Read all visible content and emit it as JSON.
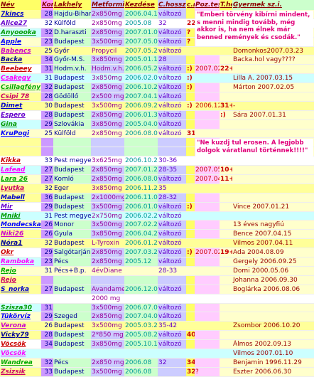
{
  "headers": [
    "Név",
    "Kor",
    "Lakhely",
    "Metformin",
    "Kezdése",
    "C.hossz",
    "c.n",
    "Poz.teszt",
    "T.hét",
    "Gyermek sz.i."
  ],
  "note1": "\"Emberi törvény kibírni mindent, s menni mindig tovább, még akkor is, ha nem élnek már benned remények és csodák.\"",
  "note2": "\"Ne kuzdj tul erosen. A legjobb dolgok váratlanul történnek!!!!\"",
  "rows": [
    [
      "7kincs",
      "28",
      "Hajdu-Bihar",
      "2x850mg",
      "2006.04.10",
      "változó",
      "",
      "",
      "",
      ""
    ],
    [
      "Alice27",
      "32",
      "Külföld",
      "2x850mg",
      "2005.08",
      "32",
      "22",
      "",
      "",
      ""
    ],
    [
      "Anyoooka",
      "32",
      "D.haraszti",
      "2x850mg",
      "2007.01.09",
      "változó",
      "?",
      "",
      "-",
      "Dorka    2004.11.08"
    ],
    [
      "Apple",
      "23",
      "Budapest",
      "3x500mg",
      "2007.05.03",
      "változó",
      "?",
      "",
      "",
      ""
    ],
    [
      "Babencs",
      "25",
      "Győr",
      "Propycil",
      "2007.05.23",
      "változó",
      "",
      "",
      "",
      "Domonkos2007.03.23"
    ],
    [
      "Backa",
      "34",
      "Győr-M.S.",
      "3x850mg",
      "2005.01.18",
      "28",
      "",
      "",
      "",
      "Backa.hol vagy????"
    ],
    [
      "Beebeey",
      "31",
      "Hodm.v.h.",
      "Hodm.v.h.",
      "2006.05.26",
      "változó",
      ":)",
      "2007.02.13",
      "22+1",
      ""
    ],
    [
      "Csakegy",
      "31",
      "Budapest",
      "3x850mg",
      "2006.02.09",
      "változó",
      ":)",
      "",
      "",
      "Lilla A.    2007.03.15"
    ],
    [
      "Csillagfény",
      "32",
      "Budapest",
      "2x850mg",
      "2006.10.24",
      "változó",
      ":)",
      "",
      "",
      "Márton    2007.02.05"
    ],
    [
      "Csipi 78",
      "28",
      "Gödöllő",
      "2x500 mg",
      "2007.04.13",
      "változó",
      "",
      "",
      "",
      ""
    ],
    [
      "Dimet",
      "30",
      "Budapest",
      "3x500mg",
      "2006.09.23",
      "változó",
      ":)",
      "2006.12.04",
      "31+4",
      "-"
    ],
    [
      "Espero",
      "28",
      "Budapest",
      "2x850mg",
      "2006.01.30",
      "változó",
      "",
      "",
      ":)",
      "Sára    2007.01.31"
    ],
    [
      "Gina",
      "29",
      "Szlovákia",
      "3x850mg",
      "2005.04.01",
      "változó",
      "",
      "",
      "",
      ""
    ],
    [
      "KruPogi",
      "25",
      "Külföld",
      "2x850mg",
      "2006.08.04",
      "változó",
      "31",
      "",
      "",
      ""
    ],
    [
      "",
      "",
      "",
      "",
      "",
      "",
      "",
      "",
      "",
      ""
    ],
    [
      "",
      "",
      "",
      "",
      "",
      "",
      "",
      "",
      "",
      ""
    ],
    [
      "Kikka",
      "33",
      "Pest megye",
      "3x625mg",
      "2006.10.28",
      "30-36",
      "",
      "",
      "",
      ""
    ],
    [
      "Lafead",
      "27",
      "Budapest",
      "2x850mg",
      "2007.01.24",
      "28-35",
      "",
      "2007.05.01",
      "10+4",
      ""
    ],
    [
      "Lara 26",
      "27",
      "Komló",
      "2x850mg",
      "2006.08.01",
      "változó",
      "",
      "2007.04.16",
      "11+6",
      ""
    ],
    [
      "Lyutka",
      "32",
      "Eger",
      "3x850mg",
      "2006.11.28",
      "35",
      "",
      "",
      "",
      ""
    ],
    [
      "Mabell",
      "36",
      "Budapest",
      "2x1000mg",
      "2006.11.07",
      "28-32",
      "",
      "",
      "",
      ""
    ],
    [
      "Mir",
      "29",
      "Budapest",
      "3x500mg",
      "2006.01.05",
      "változó",
      ":)",
      "",
      "",
      "Vince    2007.01.21"
    ],
    [
      "Mniki",
      "31",
      "Pest megye",
      "2x750mg",
      "2006.02.23",
      "változó",
      "",
      "",
      "",
      ""
    ],
    [
      "Mondecska",
      "26",
      "Monor",
      "3x500mg",
      "2007.02.22",
      "változó",
      "",
      "",
      "",
      "13 éves nagyfiú"
    ],
    [
      "Niki26",
      "26",
      "Gyula",
      "3x850mg",
      "2006.04.22",
      "változó",
      "",
      "",
      "",
      "Bence 2007.04.15"
    ],
    [
      "Nóra1",
      "32",
      "Budapest",
      "L-Tyroxin",
      "2006.01.24",
      "változó",
      "",
      "",
      "",
      "Vilmos    2007.04.11"
    ],
    [
      "Okr",
      "29",
      "Salgótarján",
      "2x850mg",
      "2007.03.20",
      "változó",
      ":)",
      "2007.02.22",
      "19+6",
      "Ada    2004.08.09"
    ],
    [
      "Ramboka",
      "23",
      "Pécs",
      "2x850mg",
      "2005.12",
      "változó",
      "",
      "",
      "",
      "Gergely    2006.09.25"
    ],
    [
      "Rejo",
      "31",
      "Pécs+B.p.",
      "4évDiane",
      "",
      "28-33",
      "",
      "",
      "",
      "Domi    2000.05.06"
    ],
    [
      "Rejo",
      "",
      "",
      "",
      "",
      "",
      "",
      "",
      "",
      "Johanna    2006.09.30"
    ],
    [
      "S_norka",
      "27",
      "Budapest",
      "Avandament",
      "2006.12.01",
      "változó",
      "",
      "",
      "",
      "Boglárka 2006.08.06"
    ],
    [
      "",
      "",
      "",
      "2000 mg",
      "",
      "",
      "",
      "",
      "",
      ""
    ],
    [
      "Szisza30",
      "31",
      "",
      "3x500mg",
      "2006.07.04",
      "változó",
      "",
      "",
      "",
      ""
    ],
    [
      "Tükörvíz",
      "29",
      "Szeged",
      "2x850mg",
      "2007.04.02",
      "változó",
      "",
      "",
      "",
      ""
    ],
    [
      "Verona",
      "26",
      "Budapest",
      "3x500mg",
      "2005.03.26",
      "35-42",
      "",
      "",
      "",
      "Zsombor 2006.10.20"
    ],
    [
      "Vicky79",
      "28",
      "Budapest",
      "2*850 mg",
      "2005.08.27",
      "változó",
      "40",
      "",
      "",
      ""
    ],
    [
      "Vöcsök",
      "34",
      "Budapest",
      "3x850mg",
      "2005.10.13",
      "változó",
      "",
      "",
      "",
      "Álmos    2002.09.13"
    ],
    [
      "Vöcsök",
      "",
      "",
      "",
      "",
      "",
      "",
      "",
      "",
      "Vilmos    2007.01.10"
    ],
    [
      "Wandrea",
      "32",
      "Pécs",
      "2x850 mg",
      "2006.08",
      "32",
      "34",
      "",
      "",
      "Benjamin 1996.11.29"
    ],
    [
      "Zsizsik",
      "33",
      "Budapest",
      "3x500mg",
      "2006.08",
      "",
      "32",
      "?",
      "",
      "Eszter    2006.06.30"
    ]
  ]
}
